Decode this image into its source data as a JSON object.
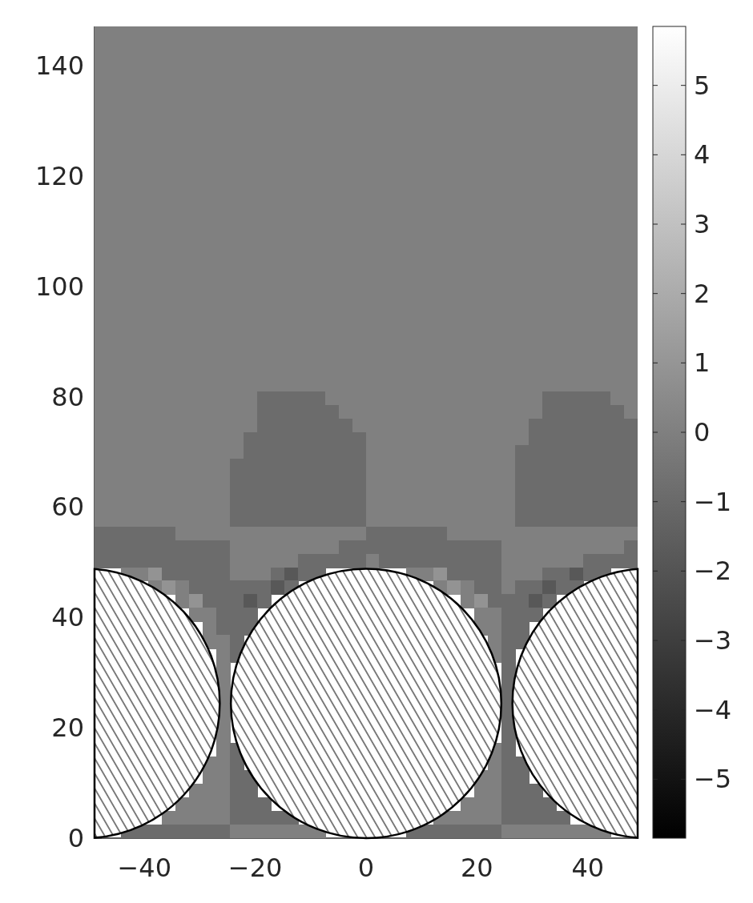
{
  "chart_data": {
    "type": "heatmap",
    "x": [
      -47.775,
      -45.325,
      -42.875,
      -40.425,
      -37.975,
      -35.525,
      -33.075,
      -30.625,
      -28.175,
      -25.725,
      -23.275,
      -20.825,
      -18.375,
      -15.925,
      -13.475,
      -11.025,
      -8.575,
      -6.125,
      -3.675,
      -1.225,
      1.225,
      3.675,
      6.125,
      8.575,
      11.025,
      13.475,
      15.925,
      18.375,
      20.825,
      23.275,
      25.725,
      28.175,
      30.625,
      33.075,
      35.525,
      37.975,
      40.425,
      42.875,
      45.325,
      47.775
    ],
    "xlim": [
      -49,
      49
    ],
    "xticks": [
      -40,
      -20,
      0,
      20,
      40
    ],
    "ylim": [
      0,
      147
    ],
    "yticks": [
      0,
      20,
      40,
      60,
      80,
      100,
      120,
      140
    ],
    "clim": [
      -5.85,
      5.85
    ],
    "cticks": [
      -5,
      -4,
      -3,
      -2,
      -1,
      0,
      1,
      2,
      3,
      4,
      5
    ],
    "cells": [
      [
        0,
        0,
        0,
        0,
        0,
        0,
        0,
        0,
        0,
        0,
        0,
        0,
        0,
        0,
        0,
        0,
        0,
        0,
        0,
        0,
        0,
        0,
        0,
        0,
        0,
        0,
        0,
        0,
        0,
        0,
        0,
        0,
        0,
        0,
        0,
        0,
        0,
        0,
        0,
        0
      ],
      [
        0,
        0,
        0,
        0,
        0,
        0,
        0,
        0,
        0,
        0,
        0,
        0,
        0,
        0,
        0,
        0,
        0,
        0,
        0,
        0,
        0,
        0,
        0,
        0,
        0,
        0,
        0,
        0,
        0,
        0,
        0,
        0,
        0,
        0,
        0,
        0,
        0,
        0,
        0,
        0
      ],
      [
        0,
        0,
        0,
        0,
        0,
        0,
        0,
        0,
        0,
        0,
        0,
        0,
        0,
        0,
        0,
        0,
        0,
        0,
        0,
        0,
        0,
        0,
        0,
        0,
        0,
        0,
        0,
        0,
        0,
        0,
        0,
        0,
        0,
        0,
        0,
        0,
        0,
        0,
        0,
        0
      ],
      [
        0,
        0,
        0,
        0,
        0,
        0,
        0,
        0,
        0,
        0,
        0,
        0,
        0,
        0,
        0,
        0,
        0,
        0,
        0,
        0,
        0,
        0,
        0,
        0,
        0,
        0,
        0,
        0,
        0,
        0,
        0,
        0,
        0,
        0,
        0,
        0,
        0,
        0,
        0,
        0
      ],
      [
        0,
        0,
        0,
        0,
        0,
        0,
        0,
        0,
        0,
        0,
        0,
        0,
        0,
        0,
        0,
        0,
        0,
        0,
        0,
        0,
        0,
        0,
        0,
        0,
        0,
        0,
        0,
        0,
        0,
        0,
        0,
        0,
        0,
        0,
        0,
        0,
        0,
        0,
        0,
        0
      ],
      [
        0,
        0,
        0,
        0,
        0,
        0,
        0,
        0,
        0,
        0,
        0,
        0,
        0,
        0,
        0,
        0,
        0,
        0,
        0,
        0,
        0,
        0,
        0,
        0,
        0,
        0,
        0,
        0,
        0,
        0,
        0,
        0,
        0,
        0,
        0,
        0,
        0,
        0,
        0,
        0
      ],
      [
        0,
        0,
        0,
        0,
        0,
        0,
        0,
        0,
        0,
        0,
        0,
        0,
        0,
        0,
        0,
        0,
        0,
        0,
        0,
        0,
        0,
        0,
        0,
        0,
        0,
        0,
        0,
        0,
        0,
        0,
        0,
        0,
        0,
        0,
        0,
        0,
        0,
        0,
        0,
        0
      ],
      [
        0,
        0,
        0,
        0,
        0,
        0,
        0,
        0,
        0,
        0,
        0,
        0,
        0,
        0,
        0,
        0,
        0,
        0,
        0,
        0,
        0,
        0,
        0,
        0,
        0,
        0,
        0,
        0,
        0,
        0,
        0,
        0,
        0,
        0,
        0,
        0,
        0,
        0,
        0,
        0
      ],
      [
        0,
        0,
        0,
        0,
        0,
        0,
        0,
        0,
        0,
        0,
        0,
        0,
        0,
        0,
        0,
        0,
        0,
        0,
        0,
        0,
        0,
        0,
        0,
        0,
        0,
        0,
        0,
        0,
        0,
        0,
        0,
        0,
        0,
        0,
        0,
        0,
        0,
        0,
        0,
        0
      ],
      [
        0,
        0,
        0,
        0,
        0,
        0,
        0,
        0,
        0,
        0,
        0,
        0,
        0,
        0,
        0,
        0,
        0,
        0,
        0,
        0,
        0,
        0,
        0,
        0,
        0,
        0,
        0,
        0,
        0,
        0,
        0,
        0,
        0,
        0,
        0,
        0,
        0,
        0,
        0,
        0
      ],
      [
        0,
        0,
        0,
        0,
        0,
        0,
        0,
        0,
        0,
        0,
        0,
        0,
        0,
        0,
        0,
        0,
        0,
        0,
        0,
        0,
        0,
        0,
        0,
        0,
        0,
        0,
        0,
        0,
        0,
        0,
        0,
        0,
        0,
        0,
        0,
        0,
        0,
        0,
        0,
        0
      ],
      [
        0,
        0,
        0,
        0,
        0,
        0,
        0,
        0,
        0,
        0,
        0,
        0,
        0,
        0,
        0,
        0,
        0,
        0,
        0,
        0,
        0,
        0,
        0,
        0,
        0,
        0,
        0,
        0,
        0,
        0,
        0,
        0,
        0,
        0,
        0,
        0,
        0,
        0,
        0,
        0
      ],
      [
        0,
        0,
        0,
        0,
        0,
        0,
        0,
        0,
        0,
        0,
        0,
        0,
        0,
        0,
        0,
        0,
        0,
        0,
        0,
        0,
        0,
        0,
        0,
        0,
        0,
        0,
        0,
        0,
        0,
        0,
        0,
        0,
        0,
        0,
        0,
        0,
        0,
        0,
        0,
        0
      ],
      [
        0,
        0,
        0,
        0,
        0,
        0,
        0,
        0,
        0,
        0,
        0,
        0,
        0,
        0,
        0,
        0,
        0,
        0,
        0,
        0,
        0,
        0,
        0,
        0,
        0,
        0,
        0,
        0,
        0,
        0,
        0,
        0,
        0,
        0,
        0,
        0,
        0,
        0,
        0,
        0
      ],
      [
        0,
        0,
        0,
        0,
        0,
        0,
        0,
        0,
        0,
        0,
        0,
        0,
        0,
        0,
        0,
        0,
        0,
        0,
        0,
        0,
        0,
        0,
        0,
        0,
        0,
        0,
        0,
        0,
        0,
        0,
        0,
        0,
        0,
        0,
        0,
        0,
        0,
        0,
        0,
        0
      ],
      [
        0,
        0,
        0,
        0,
        0,
        0,
        0,
        0,
        0,
        0,
        0,
        0,
        0,
        0,
        0,
        0,
        0,
        0,
        0,
        0,
        0,
        0,
        0,
        0,
        0,
        0,
        0,
        0,
        0,
        0,
        0,
        0,
        0,
        0,
        0,
        0,
        0,
        0,
        0,
        0
      ],
      [
        0,
        0,
        0,
        0,
        0,
        0,
        0,
        0,
        0,
        0,
        0,
        0,
        0,
        0,
        0,
        0,
        0,
        0,
        0,
        0,
        0,
        0,
        0,
        0,
        0,
        0,
        0,
        0,
        0,
        0,
        0,
        0,
        0,
        0,
        0,
        0,
        0,
        0,
        0,
        0
      ],
      [
        0,
        0,
        0,
        0,
        0,
        0,
        0,
        0,
        0,
        0,
        0,
        0,
        0,
        0,
        0,
        0,
        0,
        0,
        0,
        0,
        0,
        0,
        0,
        0,
        0,
        0,
        0,
        0,
        0,
        0,
        0,
        0,
        0,
        0,
        0,
        0,
        0,
        0,
        0,
        0
      ],
      [
        0,
        0,
        0,
        0,
        0,
        0,
        0,
        0,
        0,
        0,
        0,
        0,
        0,
        0,
        0,
        0,
        0,
        0,
        0,
        0,
        0,
        0,
        0,
        0,
        0,
        0,
        0,
        0,
        0,
        0,
        0,
        0,
        0,
        0,
        0,
        0,
        0,
        0,
        0,
        0
      ],
      [
        0,
        0,
        0,
        0,
        0,
        0,
        0,
        0,
        0,
        0,
        0,
        0,
        0,
        0,
        0,
        0,
        0,
        0,
        0,
        0,
        0,
        0,
        0,
        0,
        0,
        0,
        0,
        0,
        0,
        0,
        0,
        0,
        0,
        0,
        0,
        0,
        0,
        0,
        0,
        0
      ],
      [
        0,
        0,
        0,
        0,
        0,
        0,
        0,
        0,
        0,
        0,
        0,
        0,
        0,
        0,
        0,
        0,
        0,
        0,
        0,
        0,
        0,
        0,
        0,
        0,
        0,
        0,
        0,
        0,
        0,
        0,
        0,
        0,
        0,
        0,
        0,
        0,
        0,
        0,
        0,
        0
      ],
      [
        0,
        0,
        0,
        0,
        0,
        0,
        0,
        0,
        0,
        0,
        0,
        0,
        0,
        0,
        0,
        0,
        0,
        0,
        0,
        0,
        0,
        0,
        0,
        0,
        0,
        0,
        0,
        0,
        0,
        0,
        0,
        0,
        0,
        0,
        0,
        0,
        0,
        0,
        0,
        0
      ],
      [
        0,
        0,
        0,
        0,
        0,
        0,
        0,
        0,
        0,
        0,
        0,
        0,
        0,
        0,
        0,
        0,
        0,
        0,
        0,
        0,
        0,
        0,
        0,
        0,
        0,
        0,
        0,
        0,
        0,
        0,
        0,
        0,
        0,
        0,
        0,
        0,
        0,
        0,
        0,
        0
      ],
      [
        0,
        0,
        0,
        0,
        0,
        0,
        0,
        0,
        0,
        0,
        0,
        0,
        0,
        0,
        0,
        0,
        0,
        0,
        0,
        0,
        0,
        0,
        0,
        0,
        0,
        0,
        0,
        0,
        0,
        0,
        0,
        0,
        0,
        0,
        0,
        0,
        0,
        0,
        0,
        0
      ],
      [
        0,
        0,
        0,
        0,
        0,
        0,
        0,
        0,
        0,
        0,
        0,
        0,
        0,
        0,
        0,
        0,
        0,
        0,
        0,
        0,
        0,
        0,
        0,
        0,
        0,
        0,
        0,
        0,
        0,
        0,
        0,
        0,
        0,
        0,
        0,
        0,
        0,
        0,
        0,
        0
      ],
      [
        0,
        0,
        0,
        0,
        0,
        0,
        0,
        0,
        0,
        0,
        0,
        0,
        0,
        0,
        0,
        0,
        0,
        0,
        0,
        0,
        0,
        0,
        0,
        0,
        0,
        0,
        0,
        0,
        0,
        0,
        0,
        0,
        0,
        0,
        0,
        0,
        0,
        0,
        0,
        0
      ],
      [
        0,
        0,
        0,
        0,
        0,
        0,
        0,
        0,
        0,
        0,
        0,
        0,
        0,
        0,
        0,
        0,
        0,
        0,
        0,
        0,
        0,
        0,
        0,
        0,
        0,
        0,
        0,
        0,
        0,
        0,
        0,
        0,
        0,
        0,
        0,
        0,
        0,
        0,
        0,
        0
      ],
      [
        0,
        0,
        0,
        0,
        0,
        0,
        0,
        0,
        0,
        0,
        0,
        0,
        -0.9,
        -0.9,
        -0.9,
        -0.9,
        -0.9,
        0,
        0,
        0,
        0,
        0,
        0,
        0,
        0,
        0,
        0,
        0,
        0,
        0,
        0,
        0,
        0,
        -0.9,
        -0.9,
        -0.9,
        -0.9,
        -0.9,
        0,
        0
      ],
      [
        0,
        0,
        0,
        0,
        0,
        0,
        0,
        0,
        0,
        0,
        0,
        0,
        -0.9,
        -0.9,
        -0.9,
        -0.9,
        -0.9,
        -0.9,
        0,
        0,
        0,
        0,
        0,
        0,
        0,
        0,
        0,
        0,
        0,
        0,
        0,
        0,
        0,
        -0.9,
        -0.9,
        -0.9,
        -0.9,
        -0.9,
        -0.9,
        0
      ],
      [
        0,
        0,
        0,
        0,
        0,
        0,
        0,
        0,
        0,
        0,
        0,
        0,
        -0.9,
        -0.9,
        -0.9,
        -0.9,
        -0.9,
        -0.9,
        -0.9,
        0,
        0,
        0,
        0,
        0,
        0,
        0,
        0,
        0,
        0,
        0,
        0,
        0,
        -0.9,
        -0.9,
        -0.9,
        -0.9,
        -0.9,
        -0.9,
        -0.9,
        -0.9
      ],
      [
        0,
        0,
        0,
        0,
        0,
        0,
        0,
        0,
        0,
        0,
        0,
        -0.9,
        -0.9,
        -0.9,
        -0.9,
        -0.9,
        -0.9,
        -0.9,
        -0.9,
        -0.9,
        0,
        0,
        0,
        0,
        0,
        0,
        0,
        0,
        0,
        0,
        0,
        0,
        -0.9,
        -0.9,
        -0.9,
        -0.9,
        -0.9,
        -0.9,
        -0.9,
        -0.9
      ],
      [
        0,
        0,
        0,
        0,
        0,
        0,
        0,
        0,
        0,
        0,
        0,
        -0.9,
        -0.9,
        -0.9,
        -0.9,
        -0.9,
        -0.9,
        -0.9,
        -0.9,
        -0.9,
        0,
        0,
        0,
        0,
        0,
        0,
        0,
        0,
        0,
        0,
        0,
        -0.9,
        -0.9,
        -0.9,
        -0.9,
        -0.9,
        -0.9,
        -0.9,
        -0.9,
        -0.9
      ],
      [
        0,
        0,
        0,
        0,
        0,
        0,
        0,
        0,
        0,
        0,
        -0.9,
        -0.9,
        -0.9,
        -0.9,
        -0.9,
        -0.9,
        -0.9,
        -0.9,
        -0.9,
        -0.9,
        0,
        0,
        0,
        0,
        0,
        0,
        0,
        0,
        0,
        0,
        0,
        -0.9,
        -0.9,
        -0.9,
        -0.9,
        -0.9,
        -0.9,
        -0.9,
        -0.9,
        -0.9
      ],
      [
        0,
        0,
        0,
        0,
        0,
        0,
        0,
        0,
        0,
        0,
        -0.9,
        -0.9,
        -0.9,
        -0.9,
        -0.9,
        -0.9,
        -0.9,
        -0.9,
        -0.9,
        -0.9,
        0,
        0,
        0,
        0,
        0,
        0,
        0,
        0,
        0,
        0,
        0,
        -0.9,
        -0.9,
        -0.9,
        -0.9,
        -0.9,
        -0.9,
        -0.9,
        -0.9,
        -0.9
      ],
      [
        0,
        0,
        0,
        0,
        0,
        0,
        0,
        0,
        0,
        0,
        -0.9,
        -0.9,
        -0.9,
        -0.9,
        -0.9,
        -0.9,
        -0.9,
        -0.9,
        -0.9,
        -0.9,
        0,
        0,
        0,
        0,
        0,
        0,
        0,
        0,
        0,
        0,
        0,
        -0.9,
        -0.9,
        -0.9,
        -0.9,
        -0.9,
        -0.9,
        -0.9,
        -0.9,
        -0.9
      ],
      [
        0,
        0,
        0,
        0,
        0,
        0,
        0,
        0,
        0,
        0,
        -0.9,
        -0.9,
        -0.9,
        -0.9,
        -0.9,
        -0.9,
        -0.9,
        -0.9,
        -0.9,
        -0.9,
        0,
        0,
        0,
        0,
        0,
        0,
        0,
        0,
        0,
        0,
        0,
        -0.9,
        -0.9,
        -0.9,
        -0.9,
        -0.9,
        -0.9,
        -0.9,
        -0.9,
        -0.9
      ],
      [
        0,
        0,
        0,
        0,
        0,
        0,
        0,
        0,
        0,
        0,
        -0.9,
        -0.9,
        -0.9,
        -0.9,
        -0.9,
        -0.9,
        -0.9,
        -0.9,
        -0.9,
        -0.9,
        0,
        0,
        0,
        0,
        0,
        0,
        0,
        0,
        0,
        0,
        0,
        -0.9,
        -0.9,
        -0.9,
        -0.9,
        -0.9,
        -0.9,
        -0.9,
        -0.9,
        -0.9
      ],
      [
        -0.9,
        -0.9,
        -0.9,
        -0.9,
        -0.9,
        -0.9,
        0,
        0,
        0,
        0,
        0,
        0,
        0,
        0,
        0,
        0,
        0,
        0,
        0,
        0,
        -0.9,
        -0.9,
        -0.9,
        -0.9,
        -0.9,
        -0.9,
        0,
        0,
        0,
        0,
        0,
        0,
        0,
        0,
        0,
        0,
        0,
        0,
        0,
        0
      ],
      [
        -0.9,
        -0.9,
        -0.9,
        -0.9,
        -0.9,
        -0.9,
        -0.9,
        -0.9,
        -0.9,
        -0.9,
        0,
        0,
        0,
        0,
        0,
        0,
        0,
        0,
        -0.9,
        -0.9,
        -0.9,
        -0.9,
        -0.9,
        -0.9,
        -0.9,
        -0.9,
        -0.9,
        -0.9,
        -0.9,
        -0.9,
        0,
        0,
        0,
        0,
        0,
        0,
        0,
        0,
        0,
        -0.9
      ],
      [
        -0.9,
        -0.9,
        -0.9,
        -0.9,
        -0.9,
        -0.9,
        -0.9,
        -0.9,
        -0.9,
        -0.9,
        0,
        0,
        0,
        0,
        0,
        -0.9,
        -0.9,
        -0.9,
        -0.9,
        -0.9,
        0,
        -0.9,
        -0.9,
        -0.9,
        -0.9,
        -0.9,
        -0.9,
        -0.9,
        -0.9,
        -0.9,
        0,
        0,
        0,
        0,
        0,
        0,
        -0.9,
        -0.9,
        -0.9,
        -0.9
      ],
      [
        null,
        null,
        0,
        0,
        0.9,
        -0.9,
        -0.9,
        -0.9,
        -0.9,
        -0.9,
        0,
        0,
        0,
        -0.9,
        -1.8,
        -0.9,
        -0.9,
        null,
        null,
        null,
        null,
        null,
        null,
        0,
        0,
        0.9,
        -0.9,
        -0.9,
        -0.9,
        -0.9,
        0,
        0,
        0,
        -0.9,
        -0.9,
        -1.8,
        -0.9,
        -0.9,
        null,
        null
      ],
      [
        null,
        null,
        null,
        null,
        0,
        0.9,
        0,
        -0.9,
        -0.9,
        -0.9,
        -0.9,
        -0.9,
        -0.9,
        -1.8,
        -0.9,
        null,
        null,
        null,
        null,
        null,
        null,
        null,
        null,
        null,
        null,
        0,
        0.9,
        0,
        -0.9,
        -0.9,
        0,
        -0.9,
        -0.9,
        -1.8,
        -0.9,
        -0.9,
        null,
        null,
        null,
        null
      ],
      [
        null,
        null,
        null,
        null,
        null,
        null,
        0,
        0.9,
        -0.9,
        -0.9,
        -0.9,
        -1.8,
        -0.9,
        null,
        null,
        null,
        null,
        null,
        null,
        null,
        null,
        null,
        null,
        null,
        null,
        null,
        null,
        0,
        0.9,
        -0.9,
        -0.9,
        -0.9,
        -1.8,
        -0.9,
        null,
        null,
        null,
        null,
        null,
        null
      ],
      [
        null,
        null,
        null,
        null,
        null,
        null,
        null,
        0,
        0,
        -0.9,
        -0.9,
        -0.9,
        null,
        null,
        null,
        null,
        null,
        null,
        null,
        null,
        null,
        null,
        null,
        null,
        null,
        null,
        null,
        null,
        0,
        0,
        -0.9,
        -0.9,
        -0.9,
        null,
        null,
        null,
        null,
        null,
        null,
        null
      ],
      [
        null,
        null,
        null,
        null,
        null,
        null,
        null,
        null,
        0,
        -0.9,
        -0.9,
        -0.9,
        null,
        null,
        null,
        null,
        null,
        null,
        null,
        null,
        null,
        null,
        null,
        null,
        null,
        null,
        null,
        null,
        0,
        0,
        -0.9,
        -0.9,
        null,
        null,
        null,
        null,
        null,
        null,
        null,
        null
      ],
      [
        null,
        null,
        null,
        null,
        null,
        null,
        null,
        null,
        0,
        0,
        -0.9,
        null,
        null,
        null,
        null,
        null,
        null,
        null,
        null,
        null,
        null,
        null,
        null,
        null,
        null,
        null,
        null,
        null,
        null,
        0,
        -0.9,
        -0.9,
        null,
        null,
        null,
        null,
        null,
        null,
        null,
        null
      ],
      [
        null,
        null,
        null,
        null,
        null,
        null,
        null,
        null,
        null,
        0,
        -0.9,
        null,
        null,
        null,
        null,
        null,
        null,
        null,
        null,
        null,
        null,
        null,
        null,
        null,
        null,
        null,
        null,
        null,
        null,
        0,
        -0.9,
        null,
        null,
        null,
        null,
        null,
        null,
        null,
        null,
        null
      ],
      [
        null,
        null,
        null,
        null,
        null,
        null,
        null,
        null,
        null,
        0,
        null,
        null,
        null,
        null,
        null,
        null,
        null,
        null,
        null,
        null,
        null,
        null,
        null,
        null,
        null,
        null,
        null,
        null,
        null,
        null,
        -0.9,
        null,
        null,
        null,
        null,
        null,
        null,
        null,
        null,
        null
      ],
      [
        null,
        null,
        null,
        null,
        null,
        null,
        null,
        null,
        null,
        0,
        null,
        null,
        null,
        null,
        null,
        null,
        null,
        null,
        null,
        null,
        null,
        null,
        null,
        null,
        null,
        null,
        null,
        null,
        null,
        null,
        -0.9,
        null,
        null,
        null,
        null,
        null,
        null,
        null,
        null,
        null
      ],
      [
        null,
        null,
        null,
        null,
        null,
        null,
        null,
        null,
        null,
        0,
        null,
        null,
        null,
        null,
        null,
        null,
        null,
        null,
        null,
        null,
        null,
        null,
        null,
        null,
        null,
        null,
        null,
        null,
        null,
        null,
        -0.9,
        null,
        null,
        null,
        null,
        null,
        null,
        null,
        null,
        null
      ],
      [
        null,
        null,
        null,
        null,
        null,
        null,
        null,
        null,
        null,
        0,
        null,
        null,
        null,
        null,
        null,
        null,
        null,
        null,
        null,
        null,
        null,
        null,
        null,
        null,
        null,
        null,
        null,
        null,
        null,
        null,
        -0.9,
        null,
        null,
        null,
        null,
        null,
        null,
        null,
        null,
        null
      ],
      [
        null,
        null,
        null,
        null,
        null,
        null,
        null,
        null,
        null,
        0,
        null,
        null,
        null,
        null,
        null,
        null,
        null,
        null,
        null,
        null,
        null,
        null,
        null,
        null,
        null,
        null,
        null,
        null,
        null,
        null,
        -0.9,
        null,
        null,
        null,
        null,
        null,
        null,
        null,
        null,
        null
      ],
      [
        null,
        null,
        null,
        null,
        null,
        null,
        null,
        null,
        null,
        0,
        null,
        null,
        null,
        null,
        null,
        null,
        null,
        null,
        null,
        null,
        null,
        null,
        null,
        null,
        null,
        null,
        null,
        null,
        null,
        null,
        -0.9,
        null,
        null,
        null,
        null,
        null,
        null,
        null,
        null,
        null
      ],
      [
        null,
        null,
        null,
        null,
        null,
        null,
        null,
        null,
        null,
        0,
        -0.9,
        null,
        null,
        null,
        null,
        null,
        null,
        null,
        null,
        null,
        null,
        null,
        null,
        null,
        null,
        null,
        null,
        null,
        null,
        0,
        -0.9,
        null,
        null,
        null,
        null,
        null,
        null,
        null,
        null,
        null
      ],
      [
        null,
        null,
        null,
        null,
        null,
        null,
        null,
        null,
        0,
        0,
        -0.9,
        null,
        null,
        null,
        null,
        null,
        null,
        null,
        null,
        null,
        null,
        null,
        null,
        null,
        null,
        null,
        null,
        null,
        null,
        0,
        -0.9,
        -0.9,
        null,
        null,
        null,
        null,
        null,
        null,
        null,
        null
      ],
      [
        null,
        null,
        null,
        null,
        null,
        null,
        null,
        null,
        0,
        0,
        -0.9,
        -0.9,
        null,
        null,
        null,
        null,
        null,
        null,
        null,
        null,
        null,
        null,
        null,
        null,
        null,
        null,
        null,
        null,
        0,
        0,
        -0.9,
        -0.9,
        null,
        null,
        null,
        null,
        null,
        null,
        null,
        null
      ],
      [
        null,
        null,
        null,
        null,
        null,
        null,
        null,
        0,
        0,
        0,
        -0.9,
        -0.9,
        null,
        null,
        null,
        null,
        null,
        null,
        null,
        null,
        null,
        null,
        null,
        null,
        null,
        null,
        null,
        null,
        0,
        0,
        -0.9,
        -0.9,
        -0.9,
        null,
        null,
        null,
        null,
        null,
        null,
        null
      ],
      [
        null,
        null,
        null,
        null,
        null,
        null,
        0,
        0,
        0,
        0,
        -0.9,
        -0.9,
        -0.9,
        null,
        null,
        null,
        null,
        null,
        null,
        null,
        null,
        null,
        null,
        null,
        null,
        null,
        null,
        0,
        0,
        0,
        -0.9,
        -0.9,
        -0.9,
        -0.9,
        null,
        null,
        null,
        null,
        null,
        null
      ],
      [
        null,
        null,
        null,
        null,
        null,
        0,
        0,
        0,
        0,
        0,
        -0.9,
        -0.9,
        -0.9,
        -0.9,
        -0.9,
        null,
        null,
        null,
        null,
        null,
        null,
        null,
        null,
        null,
        null,
        0,
        0,
        0,
        0,
        0,
        -0.9,
        -0.9,
        -0.9,
        -0.9,
        -0.9,
        null,
        null,
        null,
        null,
        null
      ],
      [
        null,
        null,
        -0.9,
        -0.9,
        -0.9,
        -0.9,
        -0.9,
        -0.9,
        -0.9,
        -0.9,
        0,
        0,
        0,
        0,
        0,
        0,
        0,
        null,
        null,
        null,
        null,
        null,
        null,
        -0.9,
        -0.9,
        -0.9,
        -0.9,
        -0.9,
        -0.9,
        -0.9,
        0,
        0,
        0,
        0,
        0,
        0,
        0,
        0,
        null,
        null
      ]
    ]
  }
}
